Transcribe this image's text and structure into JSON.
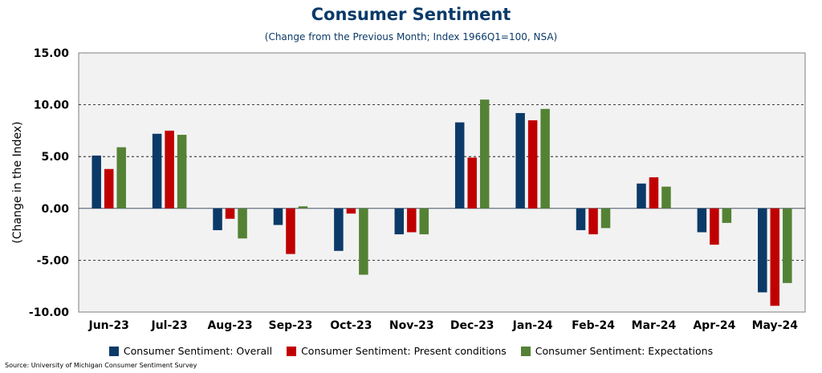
{
  "title": "Consumer Sentiment",
  "subtitle": "(Change from the Previous Month; Index 1966Q1=100, NSA)",
  "source": "Source: University of Michigan Consumer Sentiment Survey",
  "colors": {
    "overall": "#0b3a68",
    "present": "#c00000",
    "expectations": "#548235",
    "plot_bg": "#f2f2f2"
  },
  "chart_data": {
    "type": "bar",
    "title": "Consumer Sentiment",
    "subtitle": "(Change from the Previous Month; Index 1966Q1=100, NSA)",
    "ylabel": "(Change in the Index)",
    "xlabel": "",
    "ylim": [
      -10,
      15
    ],
    "yticks": [
      "15.00",
      "10.00",
      "5.00",
      "0.00",
      "-5.00",
      "-10.00"
    ],
    "ytick_values": [
      15,
      10,
      5,
      0,
      -5,
      -10
    ],
    "grid": "horizontal dashed",
    "legend_position": "bottom",
    "categories": [
      "Jun-23",
      "Jul-23",
      "Aug-23",
      "Sep-23",
      "Oct-23",
      "Nov-23",
      "Dec-23",
      "Jan-24",
      "Feb-24",
      "Mar-24",
      "Apr-24",
      "May-24"
    ],
    "series": [
      {
        "name": "Consumer Sentiment: Overall",
        "color": "#0b3a68",
        "values": [
          5.1,
          7.2,
          -2.1,
          -1.6,
          -4.1,
          -2.5,
          8.3,
          9.2,
          -2.1,
          2.4,
          -2.3,
          -8.1
        ]
      },
      {
        "name": "Consumer Sentiment: Present conditions",
        "color": "#c00000",
        "values": [
          3.8,
          7.5,
          -1.0,
          -4.4,
          -0.5,
          -2.3,
          4.9,
          8.5,
          -2.5,
          3.0,
          -3.5,
          -9.4
        ]
      },
      {
        "name": "Consumer Sentiment: Expectations",
        "color": "#548235",
        "values": [
          5.9,
          7.1,
          -2.9,
          0.2,
          -6.4,
          -2.5,
          10.5,
          9.6,
          -1.9,
          2.1,
          -1.4,
          -7.2
        ]
      }
    ]
  }
}
